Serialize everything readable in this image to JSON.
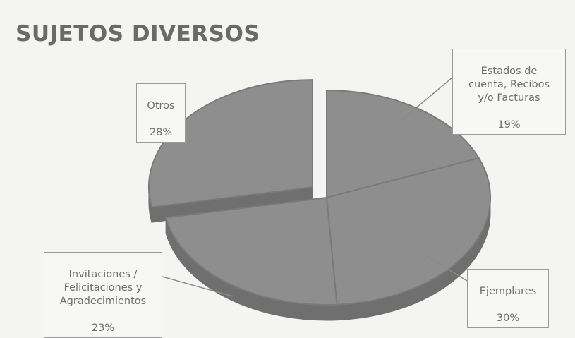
{
  "chart_data": {
    "type": "pie",
    "title": "SUJETOS DIVERSOS",
    "slices": [
      {
        "label": "Estados de\ncuenta, Recibos\ny/o Facturas",
        "value": 19,
        "value_label": "19%"
      },
      {
        "label": "Ejemplares",
        "value": 30,
        "value_label": "30%"
      },
      {
        "label": "Invitaciones /\nFelicitaciones y\nAgradecimientos",
        "value": 23,
        "value_label": "23%"
      },
      {
        "label": "Otros",
        "value": 28,
        "value_label": "28%",
        "exploded": true
      }
    ],
    "three_d": true,
    "legend": "none",
    "colors": {
      "top": "#8e8e8e",
      "side": "#6f6f6f",
      "edge": "#7a7a7a"
    }
  }
}
